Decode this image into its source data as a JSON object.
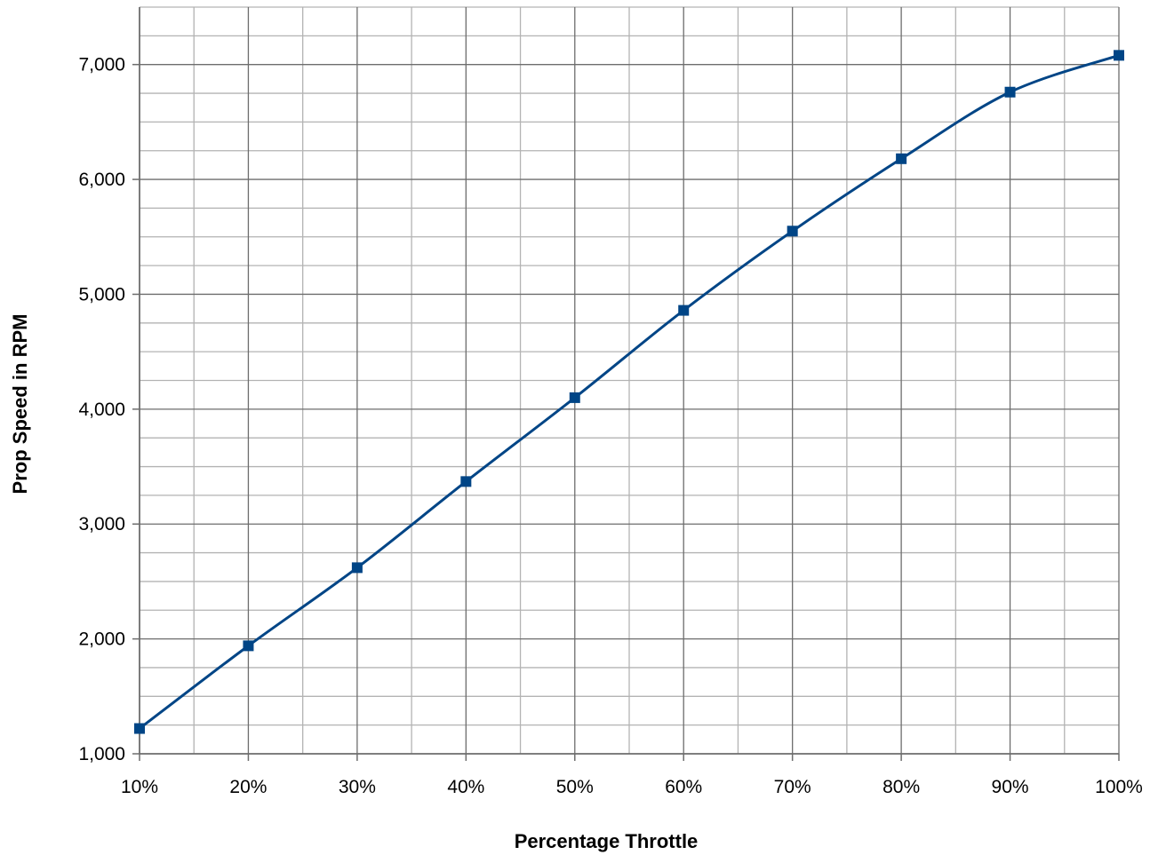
{
  "chart_data": {
    "type": "line",
    "title": "",
    "xlabel": "Percentage Throttle",
    "ylabel": "Prop Speed in RPM",
    "x": [
      10,
      20,
      30,
      40,
      50,
      60,
      70,
      80,
      90,
      100
    ],
    "x_tick_labels": [
      "10%",
      "20%",
      "30%",
      "40%",
      "50%",
      "60%",
      "70%",
      "80%",
      "90%",
      "100%"
    ],
    "y_ticks": [
      1000,
      2000,
      3000,
      4000,
      5000,
      6000,
      7000
    ],
    "y_tick_labels": [
      "1,000",
      "2,000",
      "3,000",
      "4,000",
      "5,000",
      "6,000",
      "7,000"
    ],
    "xlim": [
      10,
      100
    ],
    "ylim": [
      1000,
      7500
    ],
    "grid": true,
    "legend": "none",
    "series": [
      {
        "values": [
          1220,
          1940,
          2620,
          3370,
          4100,
          4860,
          5550,
          6180,
          6760,
          7080
        ],
        "color": "#004586",
        "marker": "square"
      }
    ],
    "colors": {
      "major_grid": "#6d6d6d",
      "minor_grid": "#b3b3b3",
      "axis": "#6d6d6d"
    }
  }
}
